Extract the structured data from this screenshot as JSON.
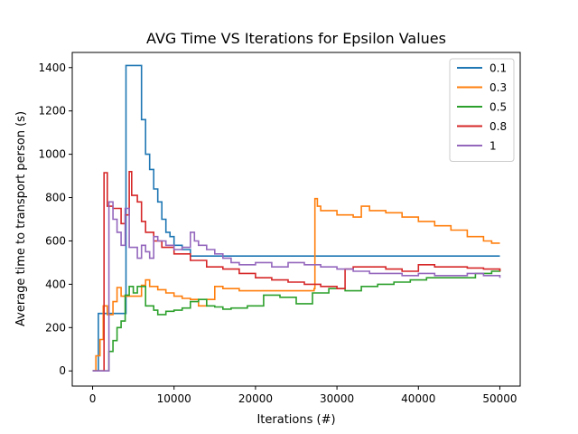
{
  "chart_data": {
    "type": "line",
    "title": "AVG Time VS Iterations for Epsilon Values",
    "xlabel": "Iterations (#)",
    "ylabel": "Average time to transport person (s)",
    "xlim": [
      -2500,
      52500
    ],
    "ylim": [
      -70,
      1470
    ],
    "xticks": [
      0,
      10000,
      20000,
      30000,
      40000,
      50000
    ],
    "yticks": [
      0,
      200,
      400,
      600,
      800,
      1000,
      1200,
      1400
    ],
    "grid": false,
    "legend_position": "top-right",
    "series": [
      {
        "name": "0.1",
        "color": "#1f77b4",
        "x": [
          0,
          700,
          4000,
          4100,
          5500,
          6000,
          6500,
          7000,
          7500,
          8000,
          8500,
          9000,
          9500,
          10000,
          11000,
          12000,
          50000
        ],
        "y": [
          0,
          265,
          265,
          1410,
          1410,
          1160,
          1000,
          930,
          840,
          780,
          700,
          640,
          620,
          580,
          560,
          530,
          530
        ]
      },
      {
        "name": "0.3",
        "color": "#ff7f0e",
        "x": [
          0,
          400,
          900,
          1300,
          1800,
          2500,
          3000,
          3500,
          6000,
          6500,
          7000,
          8000,
          9000,
          10000,
          11000,
          12000,
          13000,
          14000,
          15000,
          16000,
          18000,
          20000,
          24000,
          27200,
          27300,
          27600,
          28000,
          30000,
          32000,
          33000,
          34000,
          36000,
          38000,
          40000,
          42000,
          44000,
          46000,
          48000,
          49000,
          50000
        ],
        "y": [
          0,
          70,
          145,
          300,
          260,
          320,
          385,
          345,
          395,
          420,
          390,
          375,
          360,
          345,
          335,
          330,
          300,
          330,
          390,
          380,
          370,
          370,
          370,
          380,
          795,
          760,
          740,
          720,
          710,
          760,
          740,
          730,
          710,
          690,
          670,
          650,
          620,
          600,
          590,
          590
        ]
      },
      {
        "name": "0.5",
        "color": "#2ca02c",
        "x": [
          0,
          1500,
          2000,
          2500,
          3000,
          3500,
          4000,
          4500,
          5000,
          5500,
          6500,
          7500,
          8000,
          9000,
          10000,
          11000,
          12000,
          13000,
          14000,
          15000,
          16000,
          17000,
          19000,
          21000,
          23000,
          25000,
          27000,
          29000,
          31000,
          33000,
          35000,
          37000,
          39000,
          41000,
          43000,
          45000,
          47000,
          49000,
          50000
        ],
        "y": [
          0,
          0,
          90,
          140,
          200,
          230,
          350,
          390,
          360,
          390,
          300,
          280,
          260,
          275,
          280,
          290,
          320,
          330,
          300,
          295,
          285,
          290,
          300,
          350,
          340,
          310,
          360,
          380,
          370,
          390,
          400,
          410,
          420,
          430,
          430,
          430,
          450,
          460,
          470
        ]
      },
      {
        "name": "0.8",
        "color": "#d62728",
        "x": [
          0,
          1200,
          1400,
          1800,
          2500,
          3500,
          4000,
          4500,
          4800,
          5500,
          6000,
          6500,
          7500,
          8500,
          10000,
          12000,
          14000,
          16000,
          18000,
          20000,
          22000,
          24000,
          26000,
          28000,
          30000,
          31000,
          32000,
          34000,
          36000,
          38000,
          40000,
          42000,
          44000,
          46000,
          48000,
          50000
        ],
        "y": [
          0,
          0,
          915,
          760,
          750,
          680,
          720,
          920,
          810,
          780,
          690,
          640,
          600,
          570,
          540,
          510,
          480,
          470,
          450,
          430,
          420,
          410,
          400,
          390,
          380,
          470,
          480,
          480,
          470,
          460,
          490,
          480,
          480,
          475,
          470,
          460
        ]
      },
      {
        "name": "1",
        "color": "#9467bd",
        "x": [
          0,
          1500,
          2000,
          2500,
          3000,
          3500,
          4000,
          4500,
          5500,
          6000,
          6500,
          7000,
          7500,
          8000,
          9000,
          10000,
          11000,
          12000,
          12500,
          13000,
          14000,
          15000,
          16000,
          17000,
          18000,
          20000,
          22000,
          24000,
          26000,
          28000,
          30000,
          32000,
          34000,
          36000,
          38000,
          40000,
          42000,
          44000,
          46000,
          48000,
          50000
        ],
        "y": [
          0,
          0,
          780,
          700,
          640,
          580,
          750,
          570,
          520,
          580,
          550,
          520,
          620,
          600,
          580,
          560,
          570,
          640,
          600,
          580,
          560,
          540,
          520,
          500,
          490,
          500,
          480,
          500,
          490,
          480,
          470,
          460,
          450,
          450,
          440,
          450,
          440,
          440,
          450,
          440,
          430
        ]
      }
    ]
  }
}
